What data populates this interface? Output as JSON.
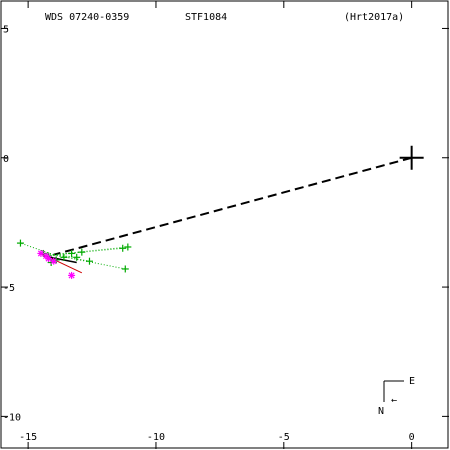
{
  "header": {
    "wds": "WDS 07240-0359",
    "name": "STF1084",
    "ref": "(Hrt2017a)"
  },
  "compass": {
    "east": "E",
    "north": "N",
    "arrow": "←"
  },
  "colors": {
    "axes": "#000000",
    "observations": "#00aa00",
    "highlight": "#ff00ff",
    "orbit": "#000000",
    "residual": "#cc0000",
    "background": "#ffffff"
  },
  "chart_data": {
    "type": "scatter",
    "title": "",
    "xlabel": "",
    "ylabel": "",
    "xlim": [
      -16.1,
      1.5
    ],
    "ylim": [
      -11.3,
      6.1
    ],
    "grid": false,
    "x_ticks": [
      {
        "value": -15,
        "label": "-15"
      },
      {
        "value": -10,
        "label": "-10"
      },
      {
        "value": -5,
        "label": "-5"
      },
      {
        "value": 0,
        "label": "0"
      }
    ],
    "y_ticks": [
      {
        "value": 5,
        "label": "5"
      },
      {
        "value": 0,
        "label": "0"
      },
      {
        "value": -5,
        "label": "-5"
      },
      {
        "value": -10,
        "label": "-10"
      }
    ],
    "primary": {
      "x": 0,
      "y": 0
    },
    "companion_line": {
      "from": [
        0,
        0
      ],
      "to": [
        -14.0,
        -3.75
      ]
    },
    "series": [
      {
        "marker": "plus",
        "color": "#00aa00",
        "points": [
          [
            -15.3,
            -3.3
          ],
          [
            -14.4,
            -3.7
          ],
          [
            -14.2,
            -3.8
          ],
          [
            -14.1,
            -4.05
          ],
          [
            -13.9,
            -3.95
          ],
          [
            -13.6,
            -3.85
          ],
          [
            -13.3,
            -3.7
          ],
          [
            -13.1,
            -3.85
          ],
          [
            -12.9,
            -3.65
          ],
          [
            -12.6,
            -4.0
          ],
          [
            -11.3,
            -3.5
          ],
          [
            -11.1,
            -3.45
          ],
          [
            -11.2,
            -4.3
          ]
        ]
      },
      {
        "marker": "asterisk",
        "color": "#ff00ff",
        "points": [
          [
            -14.5,
            -3.7
          ],
          [
            -14.3,
            -3.8
          ],
          [
            -14.2,
            -3.9
          ],
          [
            -14.0,
            -4.0
          ],
          [
            -13.3,
            -4.55
          ]
        ]
      }
    ]
  }
}
